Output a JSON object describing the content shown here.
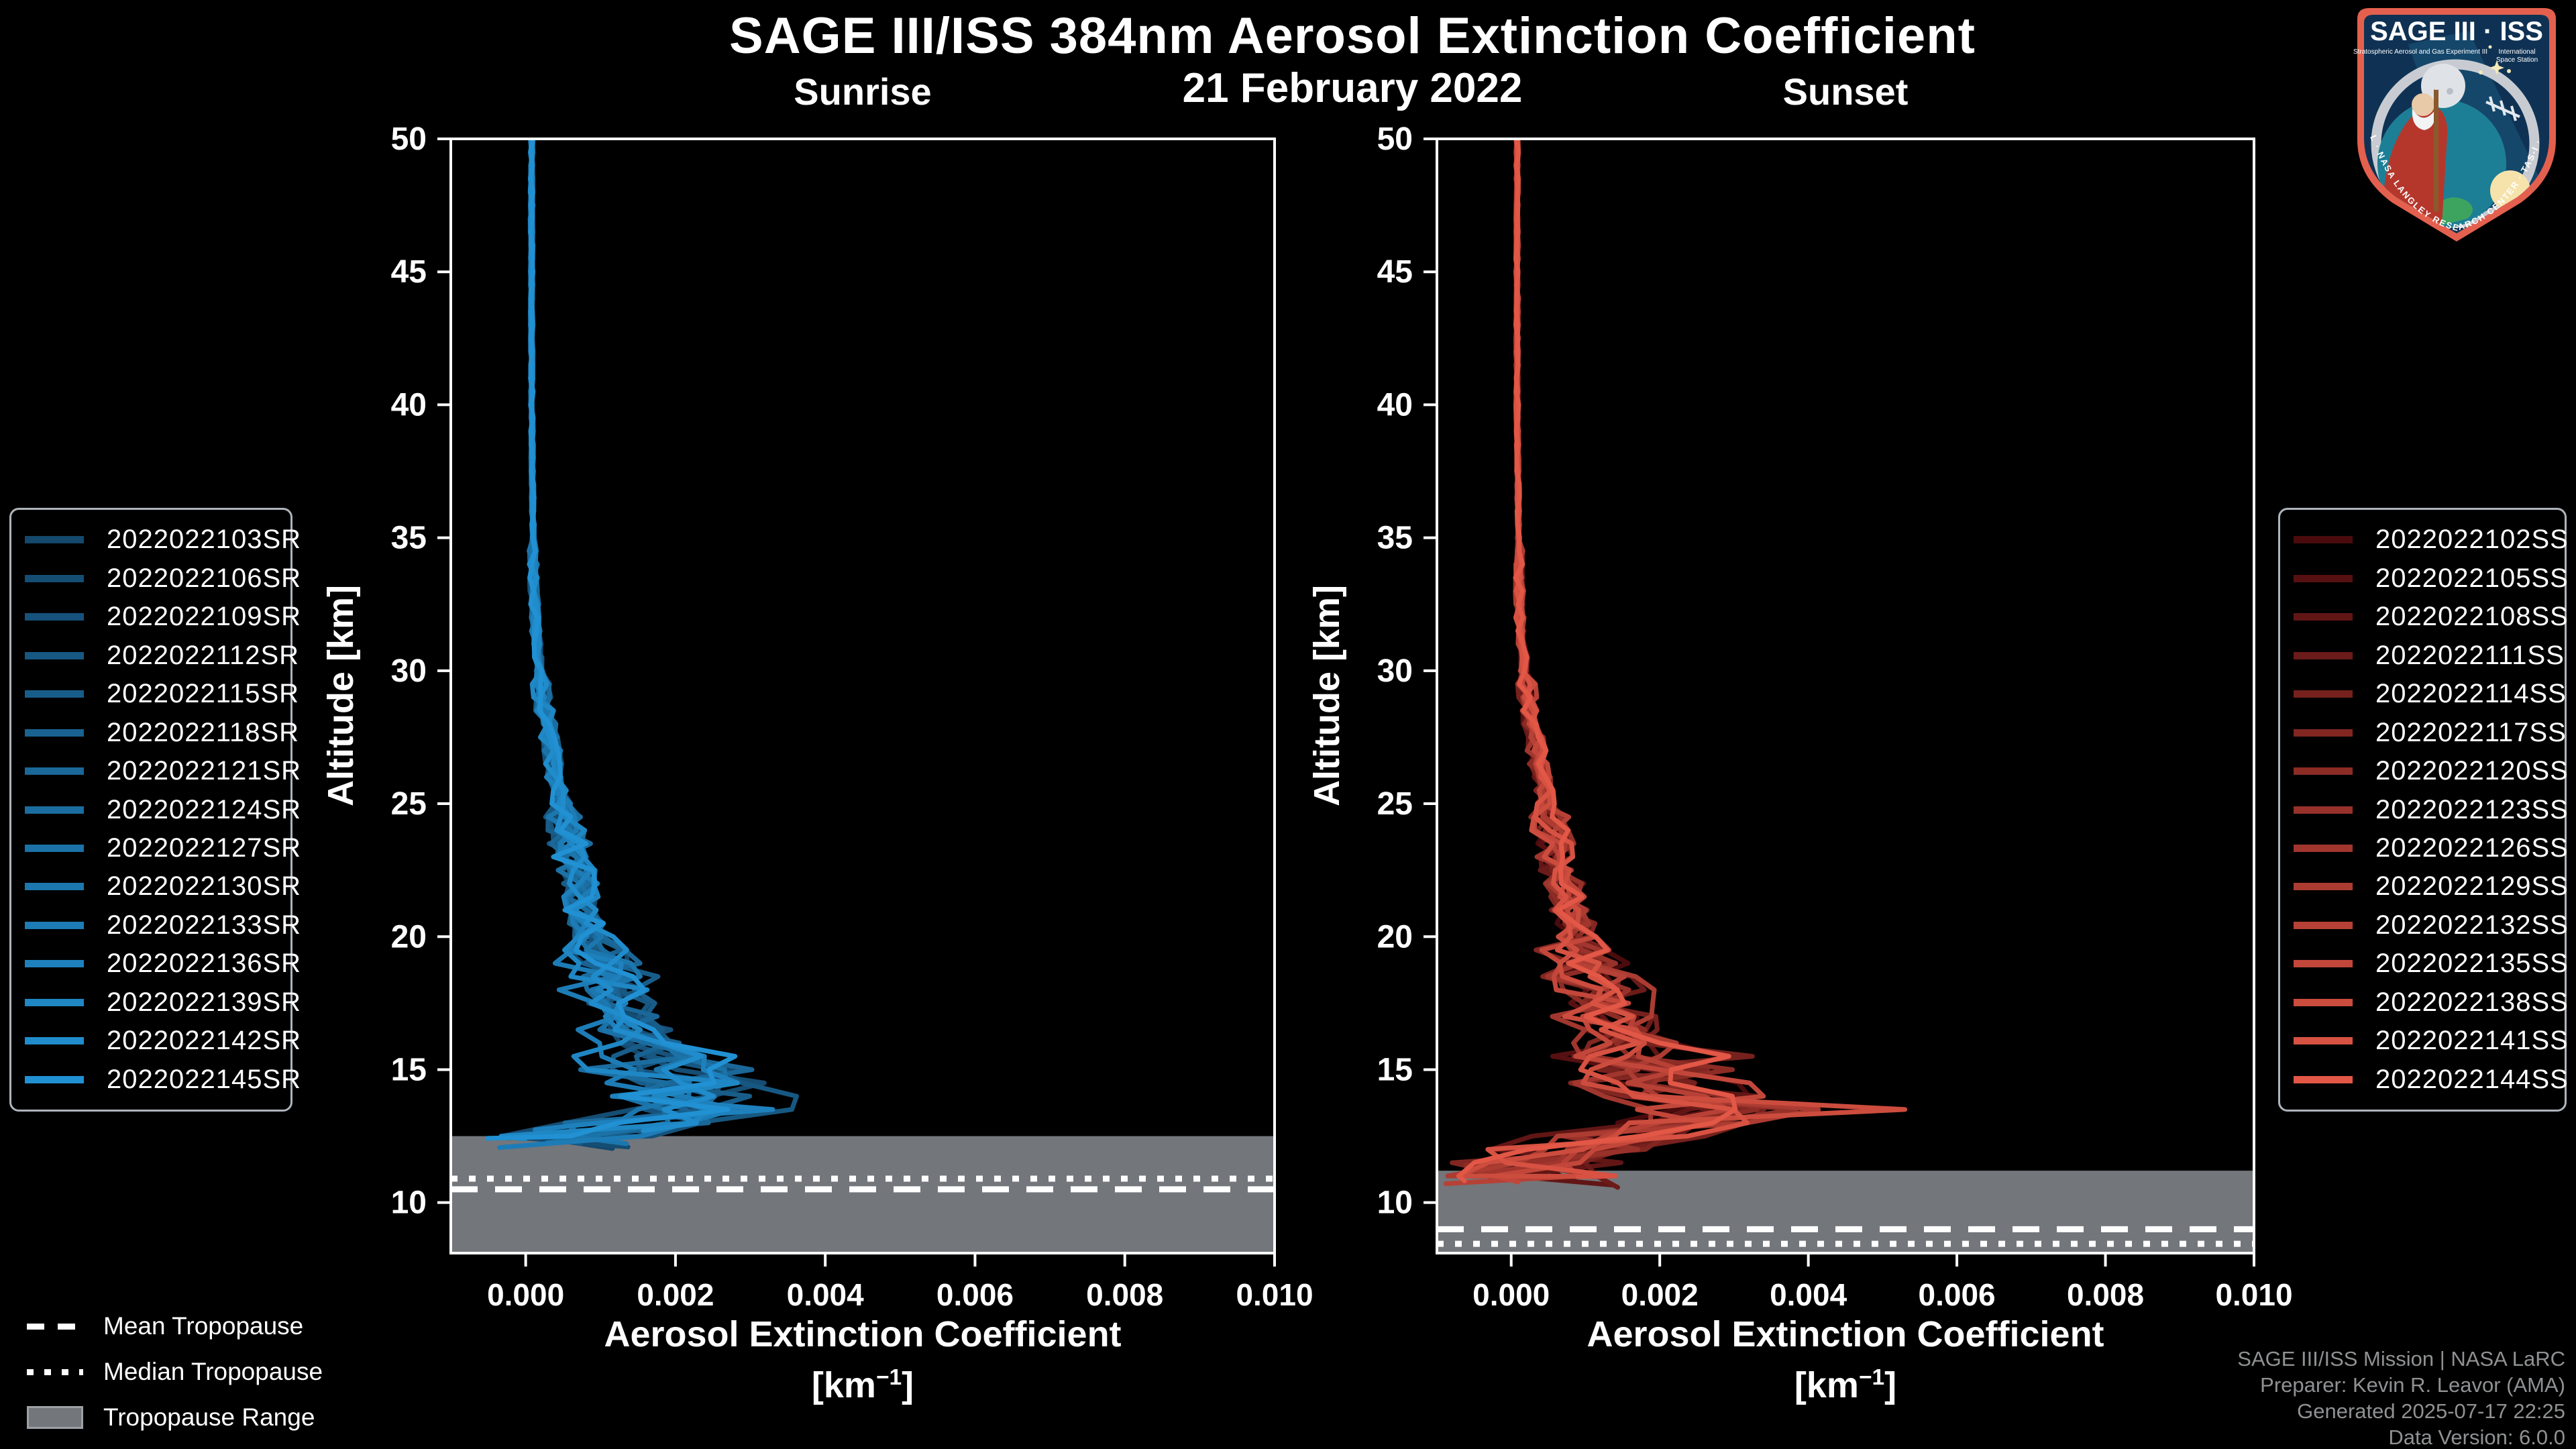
{
  "header": {
    "title": "SAGE III/ISS 384nm Aerosol Extinction Coefficient",
    "date": "21 February 2022"
  },
  "credits": {
    "line1": "SAGE III/ISS Mission | NASA LaRC",
    "line2": "Preparer: Kevin R. Leavor (AMA)",
    "line3": "Generated 2025-07-17 22:25",
    "line4": "Data Version: 6.0.0"
  },
  "tropopause_legend": {
    "mean": "Mean Tropopause",
    "median": "Median Tropopause",
    "range": "Tropopause Range"
  },
  "logo": {
    "title": "SAGE III · ISS",
    "subtitle_left": "Stratospheric Aerosol and Gas Experiment III",
    "subtitle_right_1": "International",
    "subtitle_right_2": "Space Station",
    "border_text": "BALL · NASA LANGLEY RESEARCH CENTER · TAS-I · ESA"
  },
  "chart_data": {
    "type": "line",
    "x_axis": {
      "label": "Aerosol Extinction Coefficient",
      "unit_prefix": "[km",
      "unit_exp": "−1",
      "unit_suffix": "]",
      "min": -0.001,
      "max": 0.01,
      "ticks": [
        0.0,
        0.002,
        0.004,
        0.006,
        0.008,
        0.01
      ],
      "tick_decimals": 3
    },
    "y_axis": {
      "label": "Altitude [km]",
      "min": 8.1,
      "max": 50,
      "ticks": [
        10,
        15,
        20,
        25,
        30,
        35,
        40,
        45,
        50
      ]
    },
    "style": {
      "line_width": 7,
      "band_color": "#73767b",
      "spine_color": "#ffffff",
      "tropopause_line_color": "#ffffff",
      "background": "#000000"
    },
    "panels": [
      {
        "id": "sunrise",
        "title": "Sunrise",
        "color_start": "#14486c",
        "color_end": "#2191d3",
        "series_names": [
          "2022022103SR",
          "2022022106SR",
          "2022022109SR",
          "2022022112SR",
          "2022022115SR",
          "2022022118SR",
          "2022022121SR",
          "2022022124SR",
          "2022022127SR",
          "2022022130SR",
          "2022022133SR",
          "2022022136SR",
          "2022022139SR",
          "2022022142SR",
          "2022022145SR"
        ],
        "tropopause": {
          "range_top_km": 12.5,
          "range_bottom_km": 8.1,
          "mean_km": 10.5,
          "median_km": 10.9
        },
        "base_profile": [
          [
            50,
            8e-05
          ],
          [
            40,
            8e-05
          ],
          [
            35,
            0.0001
          ],
          [
            32,
            0.00012
          ],
          [
            30,
            0.00018
          ],
          [
            28,
            0.00028
          ],
          [
            26,
            0.0004
          ],
          [
            24,
            0.00055
          ],
          [
            22,
            0.0007
          ],
          [
            20,
            0.0009
          ],
          [
            19,
            0.00105
          ],
          [
            18,
            0.0012
          ],
          [
            17,
            0.00135
          ],
          [
            16,
            0.0015
          ],
          [
            15,
            0.0019
          ],
          [
            14.5,
            0.0022
          ],
          [
            14,
            0.0021
          ],
          [
            13.5,
            0.0024
          ],
          [
            13,
            0.0016
          ],
          [
            12.5,
            0.0006
          ],
          [
            12,
            0.0002
          ]
        ],
        "profile_end_km": 12.3,
        "chaos_amp": 0.0011,
        "spike": {
          "series_index": 11,
          "altitude_km": 13.5,
          "value": 0.0033
        }
      },
      {
        "id": "sunset",
        "title": "Sunset",
        "color_start": "#4b0b0d",
        "color_end": "#e25746",
        "series_names": [
          "2022022102SS",
          "2022022105SS",
          "2022022108SS",
          "2022022111SS",
          "2022022114SS",
          "2022022117SS",
          "2022022120SS",
          "2022022123SS",
          "2022022126SS",
          "2022022129SS",
          "2022022132SS",
          "2022022135SS",
          "2022022138SS",
          "2022022141SS",
          "2022022144SS"
        ],
        "tropopause": {
          "range_top_km": 11.2,
          "range_bottom_km": 8.1,
          "mean_km": 9.0,
          "median_km": 8.45
        },
        "base_profile": [
          [
            50,
            8e-05
          ],
          [
            40,
            8e-05
          ],
          [
            35,
            0.0001
          ],
          [
            32,
            0.00012
          ],
          [
            30,
            0.00018
          ],
          [
            28,
            0.00028
          ],
          [
            26,
            0.0004
          ],
          [
            24,
            0.00055
          ],
          [
            22,
            0.0007
          ],
          [
            20,
            0.0009
          ],
          [
            19,
            0.00105
          ],
          [
            18,
            0.0012
          ],
          [
            17,
            0.00135
          ],
          [
            16,
            0.0016
          ],
          [
            15,
            0.002
          ],
          [
            14.5,
            0.0024
          ],
          [
            14,
            0.0026
          ],
          [
            13.5,
            0.0028
          ],
          [
            13,
            0.0022
          ],
          [
            12.5,
            0.0015
          ],
          [
            12,
            0.001
          ],
          [
            11.5,
            0.0006
          ],
          [
            11,
            0.0002
          ]
        ],
        "profile_end_km": 11.0,
        "chaos_amp": 0.0013,
        "spike": {
          "series_index": 12,
          "altitude_km": 13.4,
          "value": 0.0053
        }
      }
    ]
  }
}
